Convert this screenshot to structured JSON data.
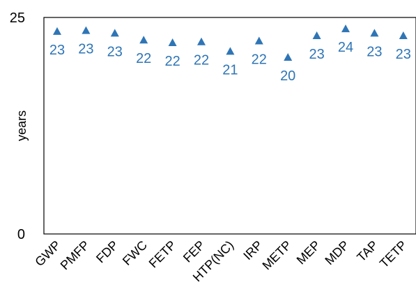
{
  "chart_data": {
    "type": "scatter",
    "marker": "triangle",
    "color": "#2E75B6",
    "categories": [
      "GWP",
      "PMFP",
      "FDP",
      "FWC",
      "FETP",
      "FEP",
      "HTP(NC)",
      "IRP",
      "METP",
      "MEP",
      "MDP",
      "TAP",
      "TETP"
    ],
    "values": [
      23.4,
      23.5,
      23.2,
      22.4,
      22.1,
      22.2,
      21.1,
      22.3,
      20.4,
      22.9,
      23.7,
      23.2,
      22.9
    ],
    "data_labels": [
      "23",
      "23",
      "23",
      "22",
      "22",
      "22",
      "21",
      "22",
      "20",
      "23",
      "24",
      "23",
      "23"
    ],
    "ylabel": "years",
    "ylim": [
      0,
      25
    ],
    "yticks": [
      "0",
      "25"
    ],
    "grid": false,
    "legend": "none"
  }
}
